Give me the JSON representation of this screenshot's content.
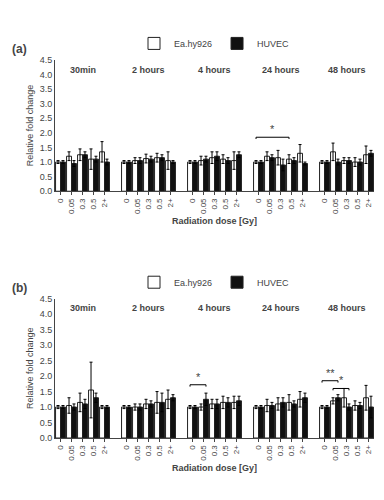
{
  "chart_data": [
    {
      "type": "bar",
      "title": "(a)",
      "x_label": "Radiation dose [Gy]",
      "y_label": "Relative fold change",
      "groups": [
        "30min",
        "2 hours",
        "4 hours",
        "24 hours",
        "48 hours"
      ],
      "categories": [
        "0",
        "0.05",
        "0.3",
        "0.5",
        "2+"
      ],
      "series": [
        {
          "name": "Ea.hy926",
          "color": "white",
          "values": [
            [
              1.0,
              1.2,
              1.25,
              1.1,
              1.35
            ],
            [
              1.0,
              1.05,
              1.12,
              1.15,
              1.05
            ],
            [
              1.0,
              1.05,
              1.15,
              1.1,
              1.05
            ],
            [
              1.0,
              1.2,
              1.15,
              1.1,
              1.3
            ],
            [
              1.0,
              1.35,
              1.05,
              1.0,
              1.25
            ]
          ],
          "errors": [
            [
              0.05,
              0.15,
              0.2,
              0.35,
              0.35
            ],
            [
              0.05,
              0.1,
              0.15,
              0.15,
              0.3
            ],
            [
              0.05,
              0.15,
              0.2,
              0.15,
              0.3
            ],
            [
              0.05,
              0.15,
              0.25,
              0.15,
              0.3
            ],
            [
              0.05,
              0.3,
              0.1,
              0.15,
              0.3
            ]
          ]
        },
        {
          "name": "HUVEC",
          "color": "#111111",
          "values": [
            [
              1.0,
              0.95,
              1.25,
              1.1,
              1.0
            ],
            [
              1.0,
              1.05,
              1.1,
              1.15,
              1.0
            ],
            [
              1.0,
              1.1,
              1.2,
              1.05,
              1.25
            ],
            [
              1.0,
              1.15,
              0.9,
              1.05,
              0.95
            ],
            [
              1.0,
              1.0,
              1.05,
              1.0,
              1.3
            ]
          ],
          "errors": [
            [
              0.05,
              0.1,
              0.1,
              0.1,
              0.1
            ],
            [
              0.05,
              0.1,
              0.1,
              0.1,
              0.05
            ],
            [
              0.05,
              0.1,
              0.15,
              0.1,
              0.1
            ],
            [
              0.05,
              0.1,
              0.2,
              0.1,
              0.05
            ],
            [
              0.05,
              0.1,
              0.1,
              0.1,
              0.1
            ]
          ]
        }
      ],
      "annotations": [
        {
          "group": 3,
          "x1_category": 0,
          "x1_series": 0,
          "x2_category": 3,
          "x2_series": 0,
          "label": "*",
          "y": 1.85
        }
      ],
      "ylim": [
        0,
        4.5
      ],
      "yticks": [
        {
          "value": 0,
          "label": "0.0"
        },
        0.5,
        {
          "value": 1,
          "label": "1.0"
        },
        1.5,
        {
          "value": 2,
          "label": "2.0"
        },
        2.5,
        {
          "value": 3,
          "label": "3.0"
        },
        3.5,
        {
          "value": 4,
          "label": "4.0"
        },
        4.5
      ],
      "grid": false,
      "legend": "top"
    },
    {
      "type": "bar",
      "title": "(b)",
      "x_label": "Radiation dose [Gy]",
      "y_label": "Relative fold change",
      "groups": [
        "30min",
        "2 hours",
        "4 hours",
        "24 hours",
        "48 hours"
      ],
      "categories": [
        "0",
        "0.05",
        "0.3",
        "0.5",
        "2+"
      ],
      "series": [
        {
          "name": "Ea.hy926",
          "color": "white",
          "values": [
            [
              1.0,
              1.05,
              1.15,
              1.55,
              1.0
            ],
            [
              1.0,
              1.0,
              1.1,
              1.15,
              1.25
            ],
            [
              1.0,
              1.0,
              1.1,
              1.15,
              1.15
            ],
            [
              1.0,
              1.05,
              1.1,
              1.15,
              1.25
            ],
            [
              1.0,
              1.2,
              1.3,
              1.05,
              1.3
            ]
          ],
          "errors": [
            [
              0.05,
              0.25,
              0.3,
              0.9,
              0.05
            ],
            [
              0.05,
              0.1,
              0.15,
              0.35,
              0.3
            ],
            [
              0.05,
              0.1,
              0.15,
              0.2,
              0.2
            ],
            [
              0.05,
              0.2,
              0.2,
              0.25,
              0.25
            ],
            [
              0.05,
              0.1,
              0.3,
              0.15,
              0.4
            ]
          ]
        },
        {
          "name": "HUVEC",
          "color": "#111111",
          "values": [
            [
              1.0,
              1.0,
              1.1,
              1.3,
              1.0
            ],
            [
              1.0,
              1.0,
              1.1,
              1.15,
              1.3
            ],
            [
              1.0,
              1.25,
              1.1,
              1.15,
              1.2
            ],
            [
              1.0,
              1.05,
              1.15,
              1.1,
              1.3
            ],
            [
              1.0,
              1.3,
              1.0,
              1.05,
              1.0
            ]
          ],
          "errors": [
            [
              0.05,
              0.1,
              0.15,
              0.15,
              0.05
            ],
            [
              0.05,
              0.1,
              0.1,
              0.3,
              0.1
            ],
            [
              0.05,
              0.2,
              0.15,
              0.15,
              0.15
            ],
            [
              0.05,
              0.1,
              0.15,
              0.1,
              0.15
            ],
            [
              0.05,
              0.1,
              0.1,
              0.1,
              0.35
            ]
          ]
        }
      ],
      "annotations": [
        {
          "group": 2,
          "x1_category": 0,
          "x1_series": 0,
          "x2_category": 1,
          "x2_series": 1,
          "label": "*",
          "y": 1.72
        },
        {
          "group": 4,
          "x1_category": 0,
          "x1_series": 0,
          "x2_category": 1,
          "x2_series": 1,
          "label": "**",
          "y": 1.85
        },
        {
          "group": 4,
          "x1_category": 1,
          "x1_series": 0,
          "x2_category": 2,
          "x2_series": 1,
          "label": "*",
          "y": 1.6
        }
      ],
      "ylim": [
        0,
        4.5
      ],
      "yticks": [
        {
          "value": 0,
          "label": "0.0"
        },
        0.5,
        {
          "value": 1,
          "label": "1.0"
        },
        1.5,
        {
          "value": 2,
          "label": "2.0"
        },
        2.5,
        {
          "value": 3,
          "label": "3.0"
        },
        3.5,
        {
          "value": 4,
          "label": "4.0"
        },
        4.5
      ],
      "grid": false,
      "legend": "top"
    }
  ]
}
